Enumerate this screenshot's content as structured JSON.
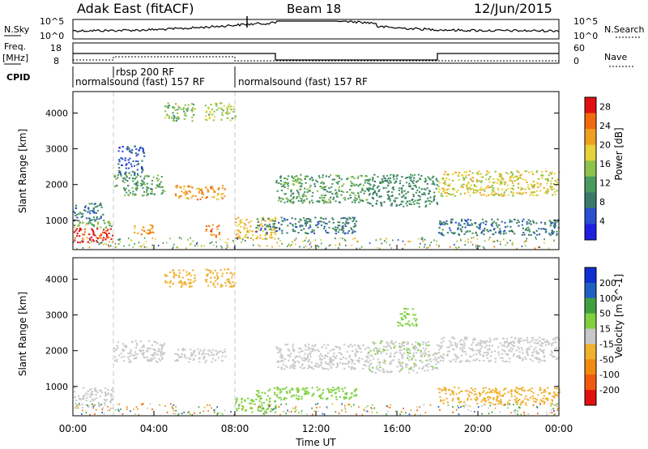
{
  "header": {
    "station": "Adak East (fitACF)",
    "beam": "Beam 18",
    "date": "12/Jun/2015"
  },
  "noise_panel": {
    "left_label": "N.Sky",
    "right_label": "N.Search",
    "left_ticks": [
      "10^5",
      "10^0"
    ],
    "right_ticks": [
      "10^5",
      "10^0"
    ]
  },
  "freq_panel": {
    "left_label": "Freq.",
    "left_unit": "[MHz]",
    "left_ticks": [
      "18",
      "8"
    ],
    "right_label": "Nave",
    "right_ticks": [
      "60",
      "0"
    ]
  },
  "cpid_panel": {
    "label": "CPID",
    "entries": [
      {
        "text": "normalsound (fast) 157 RF",
        "start_hour": 0
      },
      {
        "text": "rbsp 200 RF",
        "start_hour": 2
      },
      {
        "text": "normalsound (fast) 157 RF",
        "start_hour": 8
      }
    ]
  },
  "colors": {
    "power_scale": [
      "#1f1fe0",
      "#2a4fd0",
      "#3a7a6a",
      "#4a9a60",
      "#8ec24a",
      "#e6d23a",
      "#f0a020",
      "#f06a10",
      "#e01010"
    ],
    "velocity_scale": [
      "#e01010",
      "#f05a10",
      "#f08a10",
      "#f0b030",
      "#c8c8c8",
      "#80d040",
      "#40a040",
      "#2060c0",
      "#1030d0"
    ]
  },
  "chart_data": [
    {
      "type": "heatmap",
      "panel": "power",
      "title": "",
      "xlabel": "",
      "ylabel": "Slant Range [km]",
      "xlim": [
        0,
        24
      ],
      "ylim": [
        180,
        4600
      ],
      "x_ticks": [],
      "y_ticks": [
        "1000",
        "2000",
        "3000",
        "4000"
      ],
      "y_tick_values": [
        1000,
        2000,
        3000,
        4000
      ],
      "colorbar_label": "Power [dB]",
      "colorbar_ticks": [
        "4",
        "8",
        "12",
        "16",
        "20",
        "24",
        "28"
      ],
      "colorbar_tick_values": [
        4,
        8,
        12,
        16,
        20,
        24,
        28
      ],
      "colorbar_range": [
        0,
        30
      ],
      "echo_regions": [
        {
          "x0": 0.0,
          "x1": 2.0,
          "y0": 400,
          "y1": 800,
          "value": 28
        },
        {
          "x0": 0.0,
          "x1": 2.0,
          "y0": 800,
          "y1": 1000,
          "value": 14
        },
        {
          "x0": 0.0,
          "x1": 1.5,
          "y0": 1000,
          "y1": 1500,
          "value": 8
        },
        {
          "x0": 2.0,
          "x1": 4.5,
          "y0": 1700,
          "y1": 2300,
          "value": 12
        },
        {
          "x0": 2.2,
          "x1": 3.5,
          "y0": 2300,
          "y1": 3100,
          "value": 6
        },
        {
          "x0": 3.0,
          "x1": 4.0,
          "y0": 600,
          "y1": 900,
          "value": 22
        },
        {
          "x0": 4.5,
          "x1": 6.0,
          "y0": 3800,
          "y1": 4300,
          "value": 14
        },
        {
          "x0": 6.5,
          "x1": 8.0,
          "y0": 3800,
          "y1": 4300,
          "value": 16
        },
        {
          "x0": 5.0,
          "x1": 7.5,
          "y0": 1600,
          "y1": 2000,
          "value": 22
        },
        {
          "x0": 6.5,
          "x1": 7.2,
          "y0": 550,
          "y1": 900,
          "value": 24
        },
        {
          "x0": 8.0,
          "x1": 10.0,
          "y0": 500,
          "y1": 1100,
          "value": 20
        },
        {
          "x0": 9.0,
          "x1": 14.0,
          "y0": 650,
          "y1": 1100,
          "value": 8
        },
        {
          "x0": 10.0,
          "x1": 14.5,
          "y0": 1500,
          "y1": 2300,
          "value": 12
        },
        {
          "x0": 14.5,
          "x1": 18.0,
          "y0": 1400,
          "y1": 2300,
          "value": 10
        },
        {
          "x0": 18.0,
          "x1": 24.0,
          "y0": 1700,
          "y1": 2400,
          "value": 18
        },
        {
          "x0": 18.0,
          "x1": 24.0,
          "y0": 600,
          "y1": 1050,
          "value": 8
        }
      ]
    },
    {
      "type": "heatmap",
      "panel": "velocity",
      "title": "",
      "xlabel": "Time UT",
      "ylabel": "Slant Range [km]",
      "xlim": [
        0,
        24
      ],
      "ylim": [
        180,
        4600
      ],
      "x_ticks": [
        "00:00",
        "04:00",
        "08:00",
        "12:00",
        "16:00",
        "20:00",
        "00:00"
      ],
      "x_tick_values": [
        0,
        4,
        8,
        12,
        16,
        20,
        24
      ],
      "y_ticks": [
        "1000",
        "2000",
        "3000",
        "4000"
      ],
      "y_tick_values": [
        1000,
        2000,
        3000,
        4000
      ],
      "colorbar_label": "Velocity [m s^-1]",
      "colorbar_ticks": [
        "-200",
        "-100",
        "-50",
        "-15",
        "15",
        "50",
        "100",
        "200"
      ],
      "colorbar_tick_values": [
        -200,
        -100,
        -50,
        -15,
        15,
        50,
        100,
        200
      ],
      "echo_regions": [
        {
          "x0": 0.0,
          "x1": 2.0,
          "y0": 400,
          "y1": 1000,
          "value": 0
        },
        {
          "x0": 2.0,
          "x1": 4.5,
          "y0": 1700,
          "y1": 2300,
          "value": 0
        },
        {
          "x0": 4.5,
          "x1": 6.0,
          "y0": 3800,
          "y1": 4300,
          "value": -40
        },
        {
          "x0": 6.5,
          "x1": 8.0,
          "y0": 3800,
          "y1": 4300,
          "value": -40
        },
        {
          "x0": 5.0,
          "x1": 7.5,
          "y0": 1700,
          "y1": 2100,
          "value": 0
        },
        {
          "x0": 8.0,
          "x1": 10.0,
          "y0": 300,
          "y1": 700,
          "value": 40
        },
        {
          "x0": 9.0,
          "x1": 14.0,
          "y0": 650,
          "y1": 1000,
          "value": 30
        },
        {
          "x0": 10.0,
          "x1": 14.5,
          "y0": 1500,
          "y1": 2200,
          "value": 0
        },
        {
          "x0": 14.5,
          "x1": 18.0,
          "y0": 1400,
          "y1": 2300,
          "value": 10
        },
        {
          "x0": 16.0,
          "x1": 17.0,
          "y0": 2700,
          "y1": 3200,
          "value": 30
        },
        {
          "x0": 18.0,
          "x1": 24.0,
          "y0": 1700,
          "y1": 2400,
          "value": 0
        },
        {
          "x0": 18.0,
          "x1": 24.0,
          "y0": 500,
          "y1": 1000,
          "value": -30
        }
      ]
    }
  ]
}
